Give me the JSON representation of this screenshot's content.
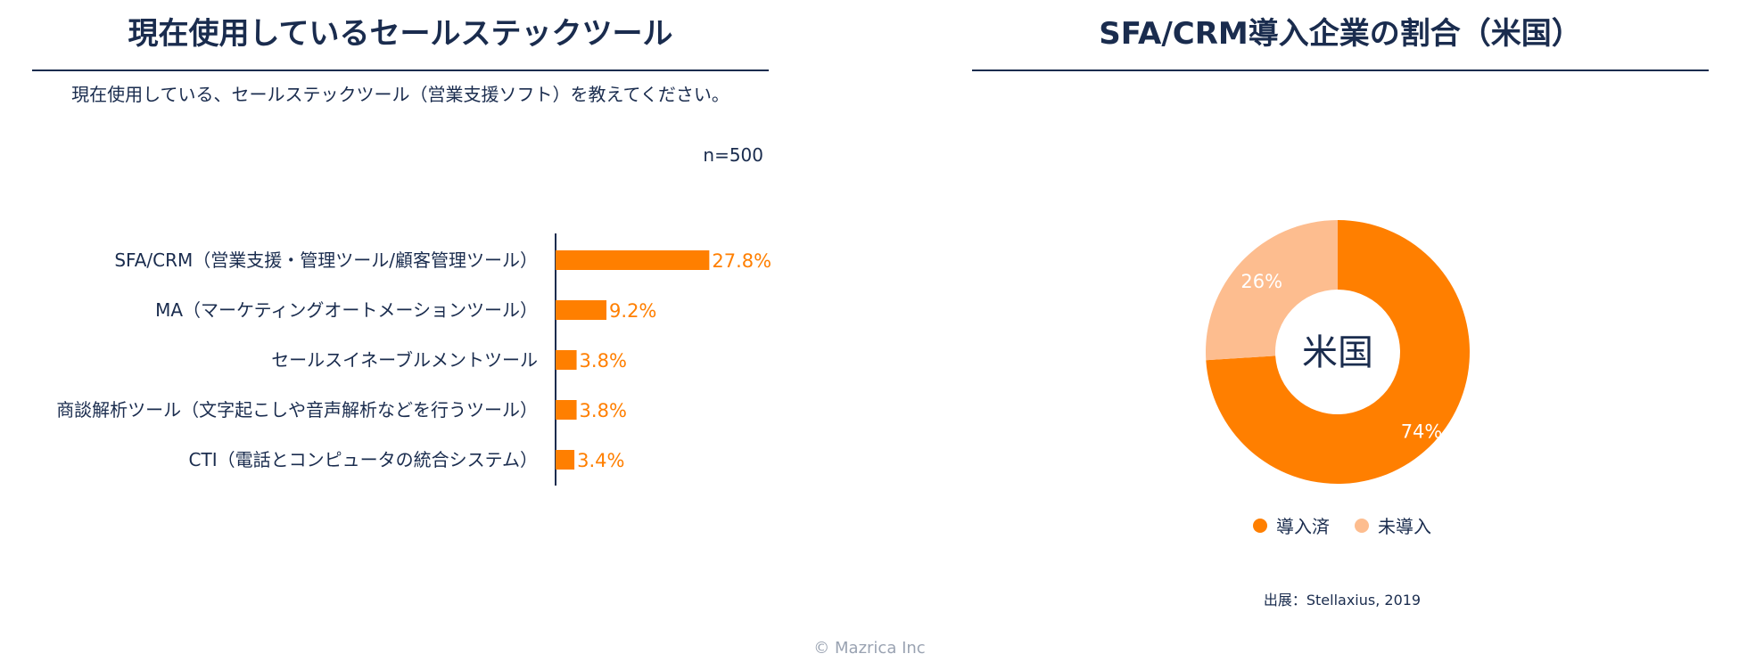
{
  "colors": {
    "text": "#1a2c4e",
    "accent": "#ff7f00",
    "accent_light": "#fdbd8f",
    "muted": "#9aa3b2"
  },
  "left": {
    "title": "現在使用しているセールステックツール",
    "question": "現在使用している、セールステックツール（営業支援ソフト）を教えてください。",
    "sample_size": "n=500"
  },
  "right": {
    "title": "SFA/CRM導入企業の割合（米国）",
    "center_label": "米国",
    "source": "出展：Stellaxius, 2019"
  },
  "footer": {
    "copyright": "© Mazrica Inc"
  },
  "chart_data": [
    {
      "type": "bar",
      "orientation": "horizontal",
      "categories": [
        "SFA/CRM（営業支援・管理ツール/顧客管理ツール）",
        "MA（マーケティングオートメーションツール）",
        "セールスイネーブルメントツール",
        "商談解析ツール（文字起こしや音声解析などを行うツール）",
        "CTI（電話とコンピュータの統合システム）"
      ],
      "values": [
        27.8,
        9.2,
        3.8,
        3.8,
        3.4
      ],
      "value_labels": [
        "27.8%",
        "9.2%",
        "3.8%",
        "3.8%",
        "3.4%"
      ],
      "xlim": [
        0,
        100
      ],
      "grid": false
    },
    {
      "type": "pie",
      "style": "donut",
      "labels": [
        "導入済",
        "未導入"
      ],
      "values": [
        74,
        26
      ],
      "value_labels": [
        "74%",
        "26%"
      ],
      "colors": [
        "#ff7f00",
        "#fdbd8f"
      ],
      "legend_position": "bottom"
    }
  ]
}
